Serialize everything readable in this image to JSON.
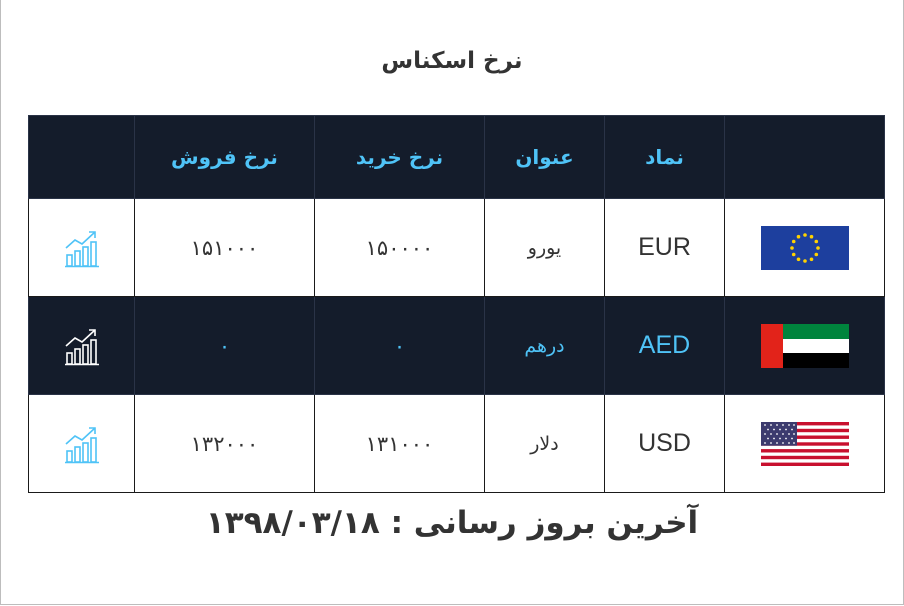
{
  "title": "نرخ اسکناس",
  "columns": {
    "flag": "",
    "symbol": "نماد",
    "name": "عنوان",
    "buy": "نرخ خرید",
    "sell": "نرخ فروش",
    "chart": ""
  },
  "rows": [
    {
      "code": "EUR",
      "name": "یورو",
      "buy": "۱۵۰۰۰۰",
      "sell": "۱۵۱۰۰۰",
      "flag_icon": "eu-flag-icon",
      "chart_icon": "chart-growth-icon"
    },
    {
      "code": "AED",
      "name": "درهم",
      "buy": "۰",
      "sell": "۰",
      "flag_icon": "uae-flag-icon",
      "chart_icon": "chart-growth-icon"
    },
    {
      "code": "USD",
      "name": "دلار",
      "buy": "۱۳۱۰۰۰",
      "sell": "۱۳۲۰۰۰",
      "flag_icon": "us-flag-icon",
      "chart_icon": "chart-growth-icon"
    }
  ],
  "footer": {
    "label": "آخرین بروز رسانی :",
    "date": "۱۳۹۸/۰۳/۱۸"
  },
  "colors": {
    "header_bg": "#141c2b",
    "accent": "#4fc3f7",
    "text": "#333333"
  }
}
